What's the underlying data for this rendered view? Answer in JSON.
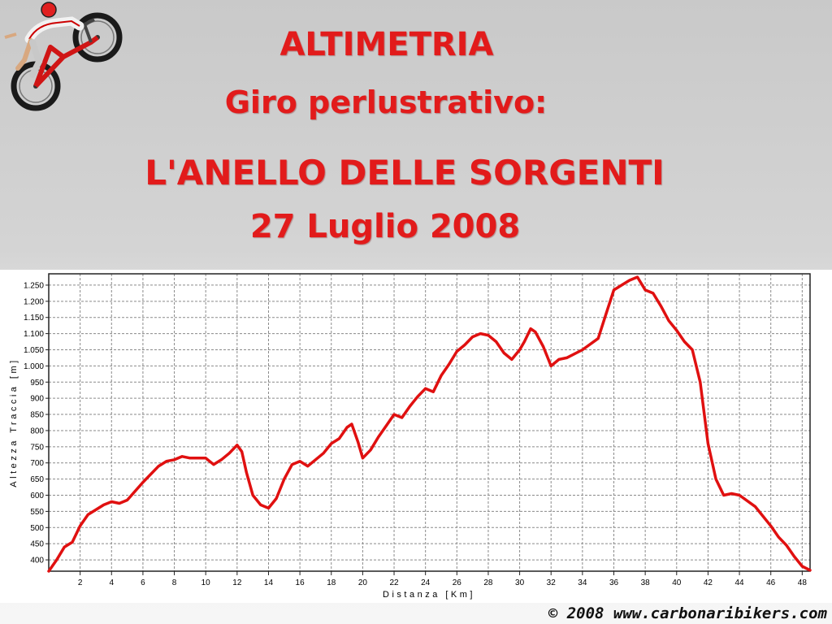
{
  "titles": {
    "line1": "ALTIMETRIA",
    "line2": "Giro perlustrativo:",
    "line3": "L'ANELLO DELLE SORGENTI",
    "line4": "27 Luglio 2008"
  },
  "footer": "© 2008 www.carbonaribikers.com",
  "logo_icon": "mountain-biker-icon",
  "colors": {
    "title": "#e21b1b",
    "line": "#e01010"
  },
  "chart_data": {
    "type": "line",
    "xlabel": "Distanza [Km]",
    "ylabel": "Altezza Traccia [m]",
    "xlim": [
      0,
      48.5
    ],
    "ylim": [
      365,
      1285
    ],
    "grid": true,
    "xticks": [
      2,
      4,
      6,
      8,
      10,
      12,
      14,
      16,
      18,
      20,
      22,
      24,
      26,
      28,
      30,
      32,
      34,
      36,
      38,
      40,
      42,
      44,
      46,
      48
    ],
    "yticks": [
      400,
      450,
      500,
      550,
      600,
      650,
      700,
      750,
      800,
      850,
      900,
      950,
      1000,
      1050,
      1100,
      1150,
      1200,
      1250
    ],
    "ytick_labels": [
      "400",
      "450",
      "500",
      "550",
      "600",
      "650",
      "700",
      "750",
      "800",
      "850",
      "900",
      "950",
      "1.000",
      "1.050",
      "1.100",
      "1.150",
      "1.200",
      "1.250"
    ],
    "series": [
      {
        "x": [
          0,
          0.5,
          1,
          1.5,
          2,
          2.5,
          3,
          3.5,
          4,
          4.5,
          5,
          6,
          7,
          7.5,
          8,
          8.5,
          9,
          10,
          10.5,
          11,
          11.5,
          12,
          12.3,
          12.6,
          13,
          13.5,
          14,
          14.5,
          15,
          15.5,
          16,
          16.5,
          17,
          17.5,
          18,
          18.5,
          19,
          19.3,
          19.7,
          20,
          20.5,
          21,
          21.5,
          22,
          22.5,
          23,
          23.5,
          24,
          24.5,
          25,
          25.5,
          26,
          26.5,
          27,
          27.5,
          28,
          28.5,
          29,
          29.5,
          30,
          30.3,
          30.7,
          31,
          31.5,
          32,
          32.5,
          33,
          34,
          35,
          35.5,
          36,
          36.5,
          37,
          37.5,
          38,
          38.5,
          39,
          39.5,
          40,
          40.5,
          41,
          41.5,
          42,
          42.5,
          43,
          43.5,
          44,
          45,
          46,
          46.5,
          47,
          47.5,
          48,
          48.5
        ],
        "y": [
          365,
          400,
          440,
          455,
          505,
          540,
          555,
          570,
          580,
          575,
          585,
          640,
          690,
          705,
          710,
          720,
          715,
          715,
          695,
          710,
          730,
          755,
          735,
          670,
          600,
          570,
          560,
          590,
          650,
          695,
          705,
          690,
          710,
          730,
          760,
          775,
          810,
          820,
          765,
          715,
          740,
          780,
          815,
          850,
          840,
          875,
          905,
          930,
          920,
          970,
          1005,
          1045,
          1065,
          1090,
          1100,
          1095,
          1075,
          1040,
          1020,
          1050,
          1075,
          1115,
          1105,
          1060,
          1000,
          1020,
          1025,
          1050,
          1085,
          1160,
          1235,
          1250,
          1265,
          1275,
          1235,
          1225,
          1185,
          1140,
          1110,
          1075,
          1050,
          950,
          760,
          650,
          600,
          605,
          600,
          565,
          505,
          470,
          445,
          410,
          380,
          368
        ]
      }
    ]
  }
}
